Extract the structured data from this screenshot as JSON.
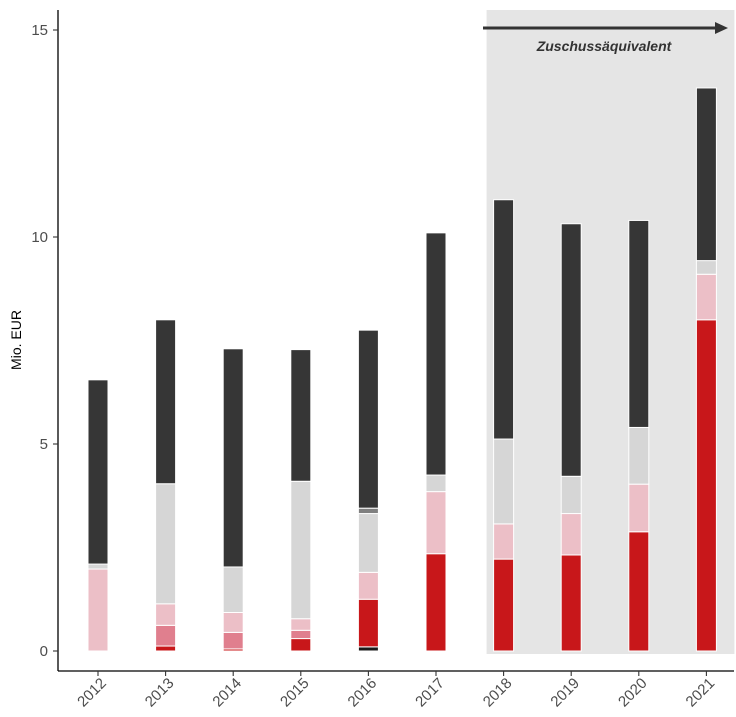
{
  "chart_data": {
    "type": "bar",
    "stacked": true,
    "categories": [
      "2012",
      "2013",
      "2014",
      "2015",
      "2016",
      "2017",
      "2018",
      "2019",
      "2020",
      "2021"
    ],
    "ylabel": "Mio. EUR",
    "xlabel": "",
    "ylim": [
      0,
      15.5
    ],
    "yticks": [
      0,
      5,
      10,
      15
    ],
    "grid": false,
    "legend": "none",
    "series": [
      {
        "color": "#1a1a1a",
        "values": [
          0,
          0,
          0,
          0,
          0.1,
          0,
          0,
          0,
          0,
          0
        ]
      },
      {
        "color": "#c8171a",
        "values": [
          0,
          0.12,
          0.05,
          0.3,
          1.15,
          2.35,
          2.22,
          2.32,
          2.88,
          8.0
        ]
      },
      {
        "color": "#e07f8e",
        "values": [
          0,
          0.5,
          0.4,
          0.2,
          0,
          0,
          0,
          0,
          0,
          0
        ]
      },
      {
        "color": "#ecbfc7",
        "values": [
          1.98,
          0.52,
          0.48,
          0.28,
          0.65,
          1.5,
          0.85,
          1.0,
          1.15,
          1.1
        ]
      },
      {
        "color": "#d6d6d6",
        "values": [
          0.12,
          2.9,
          1.1,
          3.32,
          1.42,
          0.4,
          2.05,
          0.9,
          1.37,
          0.33
        ]
      },
      {
        "color": "#7f7f7f",
        "values": [
          0,
          0,
          0,
          0,
          0.13,
          0,
          0,
          0,
          0,
          0
        ]
      },
      {
        "color": "#363636",
        "values": [
          4.45,
          3.96,
          5.27,
          3.18,
          4.3,
          5.85,
          5.78,
          6.1,
          5.0,
          4.17
        ]
      }
    ],
    "shaded_region": {
      "from": "2018",
      "to": "2021",
      "color": "#e5e5e5"
    },
    "annotation": {
      "text": "Zuschussäquivalent",
      "arrow": "right",
      "from": "2018",
      "to": "2021"
    }
  }
}
